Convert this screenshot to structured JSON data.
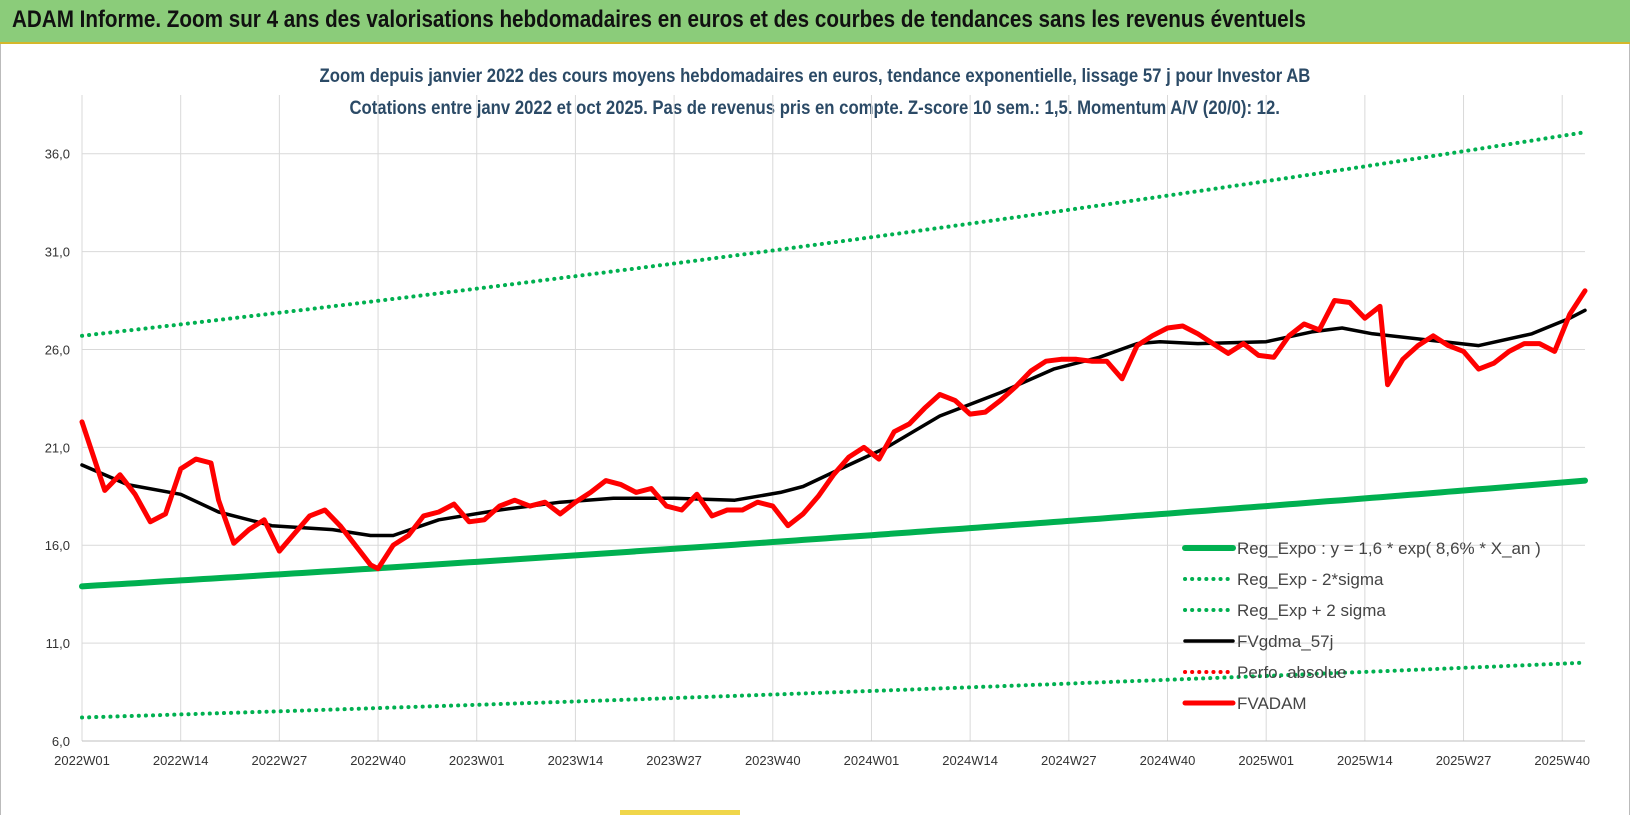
{
  "banner": {
    "title": "ADAM Informe. Zoom sur 4 ans des valorisations hebdomadaires en euros et des courbes de tendances sans les revenus éventuels"
  },
  "colors": {
    "banner_bg": "#8bcc7a",
    "subtitle": "#2b4a66",
    "reg_expo": "#00b050",
    "fvgdma": "#000000",
    "perfo": "#ff0000",
    "fvadam": "#ff0000"
  },
  "chart_data": {
    "type": "line",
    "title": "Zoom depuis janvier 2022 des cours moyens hebdomadaires en euros, tendance exponentielle, lissage 57 j pour Investor AB",
    "subtitle": "Cotations entre janv 2022 et oct 2025. Pas de revenus pris en compte. Z-score 10 sem.: 1,5. Momentum A/V (20/0): 12.",
    "xlabel": "",
    "ylabel": "",
    "ylim": [
      6,
      39
    ],
    "yticks": [
      "6,0",
      "11,0",
      "16,0",
      "21,0",
      "26,0",
      "31,0",
      "36,0"
    ],
    "ytick_values": [
      6,
      11,
      16,
      21,
      26,
      31,
      36
    ],
    "x_count": 199,
    "xticks": [
      "2022W01",
      "2022W14",
      "2022W27",
      "2022W40",
      "2023W01",
      "2023W14",
      "2023W27",
      "2023W40",
      "2024W01",
      "2024W14",
      "2024W27",
      "2024W40",
      "2025W01",
      "2025W14",
      "2025W27",
      "2025W40"
    ],
    "xtick_index": [
      0,
      13,
      26,
      39,
      52,
      65,
      78,
      91,
      104,
      117,
      130,
      143,
      156,
      169,
      182,
      195
    ],
    "grid": "vertical and horizontal",
    "legend_placement": "bottom-right",
    "legend": [
      {
        "name": "Reg_Expo : y = 1,6 * exp( 8,6% *  X_an )",
        "style": "solid-thick",
        "color": "#00b050"
      },
      {
        "name": "Reg_Exp - 2*sigma",
        "style": "dotted",
        "color": "#00b050"
      },
      {
        "name": "Reg_Exp + 2 sigma",
        "style": "dotted",
        "color": "#00b050"
      },
      {
        "name": "FVgdma_57j",
        "style": "solid",
        "color": "#000000"
      },
      {
        "name": "Perfo. absolue",
        "style": "dotted",
        "color": "#ff0000"
      },
      {
        "name": "FVADAM",
        "style": "solid-thick",
        "color": "#ff0000"
      }
    ],
    "series": [
      {
        "name": "Reg_Expo : y = 1,6 * exp( 8,6% *  X_an )",
        "kind": "exp",
        "x": [
          0,
          198
        ],
        "y": [
          13.9,
          19.3
        ]
      },
      {
        "name": "Reg_Exp - 2*sigma",
        "kind": "exp",
        "x": [
          0,
          198
        ],
        "y": [
          7.2,
          10.0
        ]
      },
      {
        "name": "Reg_Exp + 2 sigma",
        "kind": "exp",
        "x": [
          0,
          198
        ],
        "y": [
          26.7,
          37.1
        ]
      },
      {
        "name": "FVgdma_57j",
        "kind": "points",
        "x": [
          0,
          6,
          13,
          18,
          25,
          33,
          38,
          41,
          47,
          55,
          63,
          70,
          78,
          86,
          92,
          95,
          101,
          106,
          113,
          121,
          128,
          134,
          139,
          142,
          147,
          156,
          162,
          166,
          170,
          177,
          184,
          191,
          196,
          198
        ],
        "y": [
          20.1,
          19.1,
          18.6,
          17.7,
          17.0,
          16.8,
          16.5,
          16.5,
          17.3,
          17.8,
          18.2,
          18.4,
          18.4,
          18.3,
          18.7,
          19.0,
          20.1,
          21.0,
          22.6,
          23.8,
          25.0,
          25.6,
          26.3,
          26.4,
          26.3,
          26.4,
          26.9,
          27.1,
          26.8,
          26.5,
          26.2,
          26.8,
          27.6,
          28.0
        ]
      },
      {
        "name": "FVADAM",
        "kind": "points",
        "x": [
          0,
          3,
          5,
          7,
          9,
          11,
          13,
          15,
          17,
          18,
          20,
          22,
          24,
          26,
          28,
          30,
          32,
          34,
          36,
          38,
          39,
          41,
          43,
          45,
          47,
          49,
          51,
          53,
          55,
          57,
          59,
          61,
          63,
          65,
          67,
          69,
          71,
          73,
          75,
          77,
          79,
          81,
          83,
          85,
          87,
          89,
          91,
          93,
          95,
          97,
          99,
          101,
          103,
          105,
          107,
          109,
          111,
          113,
          115,
          117,
          119,
          121,
          123,
          125,
          127,
          129,
          131,
          133,
          135,
          137,
          139,
          141,
          143,
          145,
          147,
          149,
          151,
          153,
          155,
          157,
          159,
          161,
          163,
          165,
          167,
          169,
          171,
          172,
          174,
          176,
          178,
          180,
          182,
          184,
          186,
          188,
          190,
          192,
          194,
          196,
          198
        ],
        "y": [
          22.3,
          18.8,
          19.6,
          18.6,
          17.2,
          17.6,
          19.9,
          20.4,
          20.2,
          18.3,
          16.1,
          16.8,
          17.3,
          15.7,
          16.6,
          17.5,
          17.8,
          17.0,
          16.0,
          15.0,
          14.8,
          16.0,
          16.5,
          17.5,
          17.7,
          18.1,
          17.2,
          17.3,
          18.0,
          18.3,
          18.0,
          18.2,
          17.6,
          18.2,
          18.7,
          19.3,
          19.1,
          18.7,
          18.9,
          18.0,
          17.8,
          18.6,
          17.5,
          17.8,
          17.8,
          18.2,
          18.0,
          17.0,
          17.6,
          18.5,
          19.6,
          20.5,
          21.0,
          20.4,
          21.8,
          22.2,
          23.0,
          23.7,
          23.4,
          22.7,
          22.8,
          23.4,
          24.1,
          24.9,
          25.4,
          25.5,
          25.5,
          25.4,
          25.4,
          24.5,
          26.2,
          26.7,
          27.1,
          27.2,
          26.8,
          26.3,
          25.8,
          26.3,
          25.7,
          25.6,
          26.7,
          27.3,
          27.0,
          28.5,
          28.4,
          27.6,
          28.2,
          24.2,
          25.5,
          26.2,
          26.7,
          26.2,
          25.9,
          25.0,
          25.3,
          25.9,
          26.3,
          26.3,
          25.9,
          27.8,
          29.0
        ]
      }
    ]
  }
}
